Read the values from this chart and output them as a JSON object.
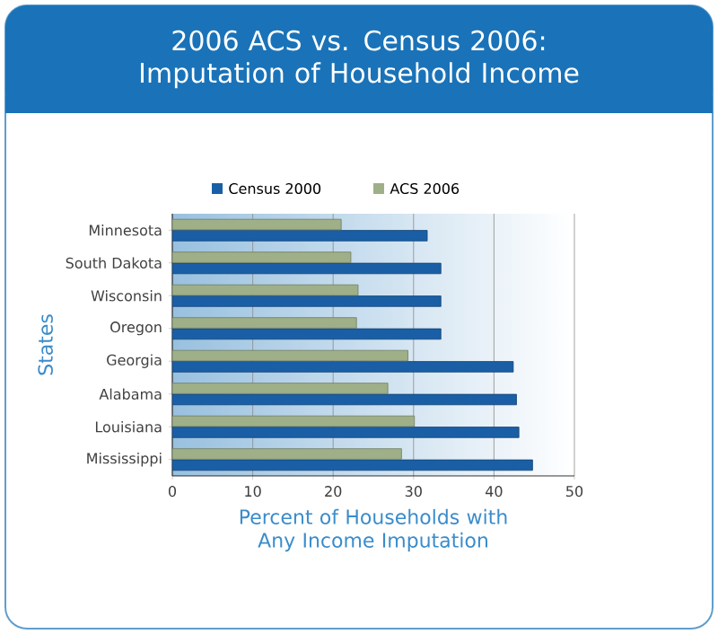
{
  "chart_data": {
    "type": "bar",
    "orientation": "horizontal",
    "title": "2006 ACS vs. Census 2006: Imputation of Household Income",
    "xlabel": "Percent of Households with Any Income Imputation",
    "ylabel": "States",
    "categories": [
      "Minnesota",
      "South Dakota",
      "Wisconsin",
      "Oregon",
      "Georgia",
      "Alabama",
      "Louisiana",
      "Mississippi"
    ],
    "series": [
      {
        "name": "Census 2000",
        "color": "#1a5fa6",
        "values": [
          31.7,
          33.4,
          33.4,
          33.4,
          42.4,
          42.8,
          43.1,
          44.8
        ]
      },
      {
        "name": "ACS 2006",
        "color": "#9fb088",
        "values": [
          21.0,
          22.2,
          23.1,
          22.9,
          29.3,
          26.8,
          30.1,
          28.5
        ]
      }
    ],
    "xlim": [
      0,
      50
    ],
    "xticks": [
      0,
      10,
      20,
      30,
      40,
      50
    ],
    "grid": "x",
    "legend": "top"
  }
}
